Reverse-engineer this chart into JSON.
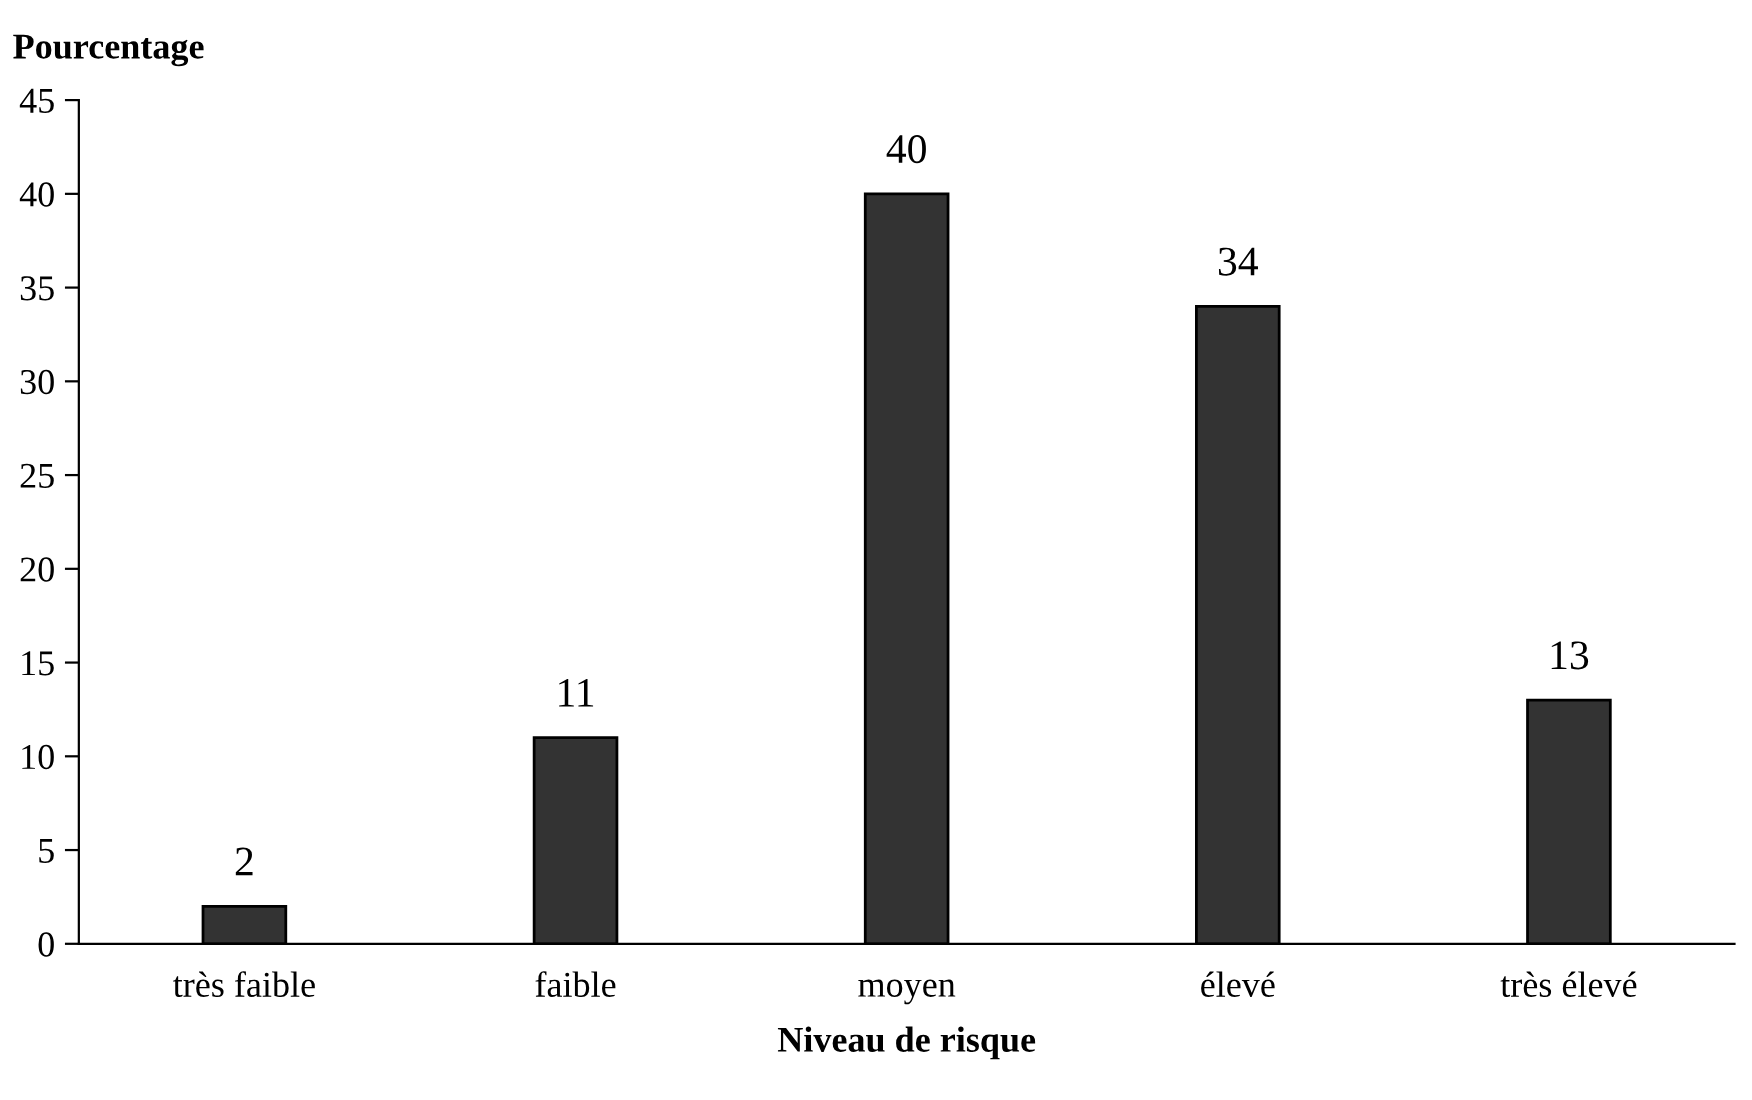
{
  "chart_data": {
    "type": "bar",
    "xlabel": "Niveau de risque",
    "ylabel": "Pourcentage",
    "categories": [
      "très faible",
      "faible",
      "moyen",
      "élevé",
      "très élevé"
    ],
    "values": [
      2,
      11,
      40,
      34,
      13
    ],
    "color": "#333333",
    "ylim": [
      0,
      45
    ],
    "yticks": [
      0,
      5,
      10,
      15,
      20,
      25,
      30,
      35,
      40,
      45
    ],
    "data_labels": true,
    "grid": false,
    "legend": false
  }
}
